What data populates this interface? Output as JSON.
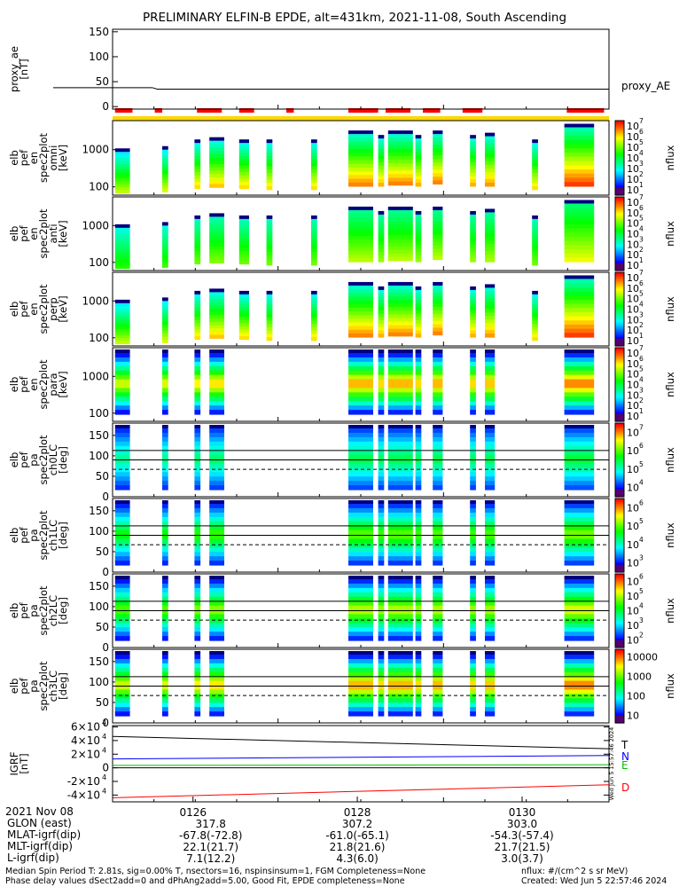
{
  "title": "PRELIMINARY ELFIN-B EPDE, alt=431km, 2021-11-08, South Ascending",
  "colors": {
    "orbit_bar": "#ffd700",
    "segment_bar": "#ff0000",
    "T": "#000000",
    "N": "#0000ff",
    "E": "#00c000",
    "D": "#ff0000"
  },
  "chart_data": [
    {
      "type": "line",
      "panel": "proxy_ae",
      "ylabel": "proxy_ae [nT]",
      "legend": "proxy_AE",
      "ylim": [
        -5,
        155
      ],
      "yticks": [
        "150",
        "100",
        "50",
        "0"
      ],
      "x": [
        0.0,
        0.08,
        0.09,
        1.0
      ],
      "values": [
        38,
        38,
        35,
        35
      ]
    },
    {
      "type": "heatmap",
      "panel": "omni",
      "ylabel": [
        "elb",
        "pef",
        "en",
        "spec2plot",
        "omni",
        "[keV]"
      ],
      "yscale": "log",
      "ylim": [
        60,
        6000
      ],
      "yticks": [
        "1000",
        "100"
      ],
      "zlabel": "nflux",
      "ztick_exponents": [
        1,
        2,
        3,
        4,
        5,
        6,
        7
      ],
      "zticks_text": [
        "10",
        "10",
        "10",
        "10",
        "10",
        "10",
        "10"
      ],
      "profile": "omni"
    },
    {
      "type": "heatmap",
      "panel": "anti",
      "ylabel": [
        "elb",
        "pef",
        "en",
        "spec2plot",
        "anti",
        "[keV]"
      ],
      "yscale": "log",
      "ylim": [
        60,
        6000
      ],
      "yticks": [
        "1000",
        "100"
      ],
      "zlabel": "nflux",
      "ztick_exponents": [
        1,
        2,
        3,
        4,
        5,
        6,
        7
      ],
      "zticks_text": [
        "10",
        "10",
        "10",
        "10",
        "10",
        "10",
        "10"
      ],
      "profile": "anti"
    },
    {
      "type": "heatmap",
      "panel": "perp",
      "ylabel": [
        "elb",
        "pef",
        "en",
        "spec2plot",
        "perp",
        "[keV]"
      ],
      "yscale": "log",
      "ylim": [
        60,
        6000
      ],
      "yticks": [
        "1000",
        "100"
      ],
      "zlabel": "nflux",
      "ztick_exponents": [
        1,
        2,
        3,
        4,
        5,
        6,
        7
      ],
      "zticks_text": [
        "10",
        "10",
        "10",
        "10",
        "10",
        "10",
        "10"
      ],
      "profile": "omni"
    },
    {
      "type": "heatmap",
      "panel": "para",
      "ylabel": [
        "elb",
        "pef",
        "en",
        "spec2plot",
        "para",
        "[keV]"
      ],
      "yscale": "log",
      "ylim": [
        60,
        6000
      ],
      "yticks": [
        "1000",
        "100"
      ],
      "zlabel": "nflux",
      "ztick_exponents": [
        1,
        2,
        3,
        4,
        5,
        6,
        7
      ],
      "zticks_text": [
        "10",
        "10",
        "10",
        "10",
        "10",
        "10",
        "10"
      ],
      "profile": "para"
    },
    {
      "type": "heatmap",
      "panel": "ch0LC",
      "ylabel": [
        "elb",
        "pef",
        "pa",
        "spec2plot",
        "ch0LC",
        "[deg]"
      ],
      "ylim": [
        0,
        180
      ],
      "yticks": [
        "150",
        "100",
        "50",
        "0"
      ],
      "lc_lines": [
        113,
        67
      ],
      "zlabel": "nflux",
      "ztick_exponents": [
        4,
        5,
        6,
        7
      ],
      "zticks_text": [
        "10",
        "10",
        "10",
        "10"
      ],
      "profile": "pa0"
    },
    {
      "type": "heatmap",
      "panel": "ch1LC",
      "ylabel": [
        "elb",
        "pef",
        "pa",
        "spec2plot",
        "ch1LC",
        "[deg]"
      ],
      "ylim": [
        0,
        180
      ],
      "yticks": [
        "150",
        "100",
        "50",
        "0"
      ],
      "lc_lines": [
        113,
        67
      ],
      "zlabel": "nflux",
      "ztick_exponents": [
        3,
        4,
        5,
        6
      ],
      "zticks_text": [
        "10",
        "10",
        "10",
        "10"
      ],
      "profile": "pa1"
    },
    {
      "type": "heatmap",
      "panel": "ch2LC",
      "ylabel": [
        "elb",
        "pef",
        "pa",
        "spec2plot",
        "ch2LC",
        "[deg]"
      ],
      "ylim": [
        0,
        180
      ],
      "yticks": [
        "150",
        "100",
        "50",
        "0"
      ],
      "lc_lines": [
        113,
        67
      ],
      "zlabel": "nflux",
      "ztick_exponents": [
        2,
        3,
        4,
        5,
        6
      ],
      "zticks_text": [
        "10",
        "10",
        "10",
        "10",
        "10"
      ],
      "profile": "pa2"
    },
    {
      "type": "heatmap",
      "panel": "ch3LC",
      "ylabel": [
        "elb",
        "pef",
        "pa",
        "spec2plot",
        "ch3LC",
        "[deg]"
      ],
      "ylim": [
        0,
        180
      ],
      "yticks": [
        "150",
        "100",
        "50",
        "0"
      ],
      "lc_lines": [
        113,
        67
      ],
      "zlabel": "nflux",
      "zticks_plain": [
        "10000",
        "1000",
        "100",
        "10"
      ],
      "ztick_values": [
        4,
        3,
        2,
        1
      ],
      "profile": "pa3"
    },
    {
      "type": "line",
      "panel": "igrf",
      "ylabel": "IGRF [nT]",
      "ylim": [
        -50000,
        62000
      ],
      "yticks": [
        {
          "v": 60000,
          "m": "6",
          "e": "4"
        },
        {
          "v": 40000,
          "m": "4",
          "e": "4"
        },
        {
          "v": 20000,
          "m": "2",
          "e": "4"
        },
        {
          "v": 0,
          "m": "0",
          "e": ""
        },
        {
          "v": -20000,
          "m": "-2",
          "e": "4"
        },
        {
          "v": -40000,
          "m": "-4",
          "e": "4"
        }
      ],
      "series": [
        {
          "name": "T",
          "start": 46000,
          "end": 28000
        },
        {
          "name": "N",
          "start": 13000,
          "end": 18000
        },
        {
          "name": "E",
          "start": 3500,
          "end": 4500
        },
        {
          "name": "D",
          "start": -44000,
          "end": -25000
        }
      ],
      "stamp": "Wed Jun  5 15:57:46 2024"
    }
  ],
  "segments": [
    [
      0.005,
      0.04
    ],
    [
      0.085,
      0.1
    ],
    [
      0.17,
      0.22
    ],
    [
      0.255,
      0.285
    ],
    [
      0.35,
      0.365
    ],
    [
      0.475,
      0.535
    ],
    [
      0.55,
      0.6
    ],
    [
      0.625,
      0.66
    ],
    [
      0.705,
      0.745
    ],
    [
      0.915,
      0.99
    ]
  ],
  "bursts": [
    {
      "x": 0.005,
      "w": 0.03,
      "hi": 0.3,
      "lo": 0.1,
      "omni": 1,
      "pa": 1
    },
    {
      "x": 0.1,
      "w": 0.012,
      "hi": 0.35,
      "lo": 0.15,
      "omni": 1,
      "pa": 1
    },
    {
      "x": 0.165,
      "w": 0.012,
      "hi": 0.5,
      "lo": 0.3,
      "omni": 1,
      "pa": 1
    },
    {
      "x": 0.195,
      "w": 0.03,
      "hi": 0.55,
      "lo": 0.35,
      "omni": 1,
      "pa": 1
    },
    {
      "x": 0.255,
      "w": 0.02,
      "hi": 0.5,
      "lo": 0.3,
      "omni": 1,
      "pa": 0
    },
    {
      "x": 0.31,
      "w": 0.012,
      "hi": 0.5,
      "lo": 0.25,
      "omni": 1,
      "pa": 0
    },
    {
      "x": 0.4,
      "w": 0.012,
      "hi": 0.5,
      "lo": 0.25,
      "omni": 1,
      "pa": 0
    },
    {
      "x": 0.475,
      "w": 0.05,
      "hi": 0.7,
      "lo": 0.4,
      "omni": 1,
      "pa": 1
    },
    {
      "x": 0.535,
      "w": 0.012,
      "hi": 0.6,
      "lo": 0.4,
      "omni": 1,
      "pa": 1
    },
    {
      "x": 0.555,
      "w": 0.05,
      "hi": 0.7,
      "lo": 0.45,
      "omni": 1,
      "pa": 1
    },
    {
      "x": 0.61,
      "w": 0.012,
      "hi": 0.6,
      "lo": 0.4,
      "omni": 1,
      "pa": 1
    },
    {
      "x": 0.645,
      "w": 0.02,
      "hi": 0.7,
      "lo": 0.5,
      "omni": 1,
      "pa": 1
    },
    {
      "x": 0.72,
      "w": 0.012,
      "hi": 0.6,
      "lo": 0.4,
      "omni": 1,
      "pa": 1
    },
    {
      "x": 0.75,
      "w": 0.02,
      "hi": 0.65,
      "lo": 0.4,
      "omni": 1,
      "pa": 1
    },
    {
      "x": 0.845,
      "w": 0.012,
      "hi": 0.5,
      "lo": 0.25,
      "omni": 1,
      "pa": 0
    },
    {
      "x": 0.91,
      "w": 0.06,
      "hi": 0.85,
      "lo": 0.4,
      "omni": 1,
      "pa": 1
    }
  ],
  "xaxis": {
    "date": "2021 Nov 08",
    "ticks": [
      {
        "label": "0126",
        "x": 0.162
      },
      {
        "label": "0128",
        "x": 0.493
      },
      {
        "label": "0130",
        "x": 0.825
      }
    ],
    "rows": [
      {
        "label": "GLON (east)",
        "values": [
          "317.8",
          "307.2",
          "303.0"
        ]
      },
      {
        "label": "MLAT-igrf(dip)",
        "values": [
          "-67.8(-72.8)",
          "-61.0(-65.1)",
          "-54.3(-57.4)"
        ]
      },
      {
        "label": "MLT-igrf(dip)",
        "values": [
          "22.1(21.7)",
          "21.8(21.6)",
          "21.7(21.5)"
        ]
      },
      {
        "label": "L-igrf(dip)",
        "values": [
          "7.1(12.2)",
          "4.3(6.0)",
          "3.0(3.7)"
        ]
      }
    ]
  },
  "footer": {
    "line1": "Median Spin Period T: 2.81s, sig=0.00% T, nsectors=16, nspinsinsum=1, FGM Completeness=None",
    "line2": "Phase delay values dSect2add=0 and dPhAng2add=5.00, Good Fit, EPDE completeness=None",
    "units": "nflux: #/(cm^2 s sr MeV)",
    "created": "Created: Wed Jun  5 22:57:46 2024"
  }
}
